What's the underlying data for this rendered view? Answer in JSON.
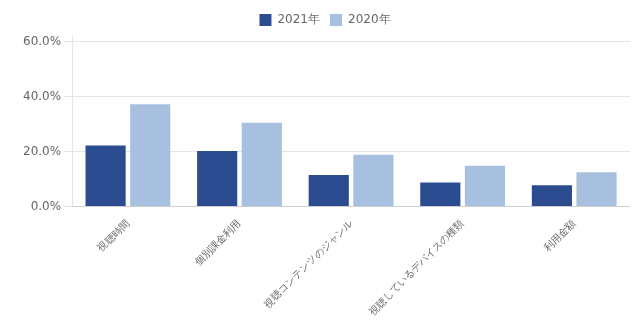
{
  "chart_data": {
    "type": "bar",
    "categories": [
      "視聴時間",
      "個別課金利用",
      "視聴コンテンツのジャンル",
      "視聴しているデバイスの種類",
      "利用金額"
    ],
    "series": [
      {
        "name": "2021年",
        "color": "#2b4d8f",
        "values": [
          0.222,
          0.202,
          0.115,
          0.088,
          0.078
        ]
      },
      {
        "name": "2020年",
        "color": "#a8c0e0",
        "values": [
          0.372,
          0.305,
          0.188,
          0.148,
          0.125
        ]
      }
    ],
    "ylim": [
      0.0,
      0.62
    ],
    "yticks": [
      {
        "value": 0.0,
        "label": "0.0%"
      },
      {
        "value": 0.2,
        "label": "20.0%"
      },
      {
        "value": 0.4,
        "label": "40.0%"
      },
      {
        "value": 0.6,
        "label": "60.0%"
      }
    ],
    "grid": true,
    "legend": "top"
  }
}
